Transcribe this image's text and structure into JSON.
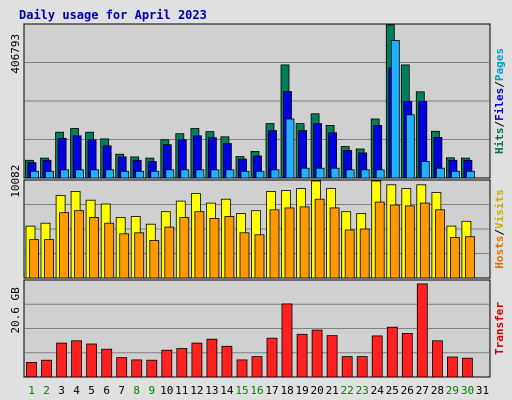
{
  "chart_data": {
    "type": "bar",
    "title": "Daily usage for April 2023",
    "categories": [
      "1",
      "2",
      "3",
      "4",
      "5",
      "6",
      "7",
      "8",
      "9",
      "10",
      "11",
      "12",
      "13",
      "14",
      "15",
      "16",
      "17",
      "18",
      "19",
      "20",
      "21",
      "22",
      "23",
      "24",
      "25",
      "26",
      "27",
      "28",
      "29",
      "30",
      "31"
    ],
    "weekend_days": [
      1,
      2,
      8,
      9,
      15,
      16,
      22,
      23,
      29,
      30
    ],
    "panels": [
      {
        "id": "hits",
        "tick_label": "406793",
        "tick_value": 406793,
        "ymax": 504000,
        "side_labels": [
          {
            "text": "Hits",
            "color": "#007050"
          },
          {
            "text": "Files",
            "color": "#0000d0"
          },
          {
            "text": "Pages",
            "color": "#00a0c8"
          }
        ],
        "series": [
          {
            "name": "Hits",
            "color": "#00805a",
            "values": [
              58000,
              65000,
              150000,
              162000,
              150000,
              128000,
              78000,
              69000,
              65000,
              125000,
              145000,
              162000,
              152000,
              135000,
              70000,
              87000,
              178000,
              370000,
              178000,
              210000,
              172000,
              103000,
              95000,
              193000,
              612000,
              370000,
              282000,
              153000,
              66000,
              65000,
              0
            ]
          },
          {
            "name": "Files",
            "color": "#0000e0",
            "values": [
              50000,
              58000,
              130000,
              138000,
              125000,
              105000,
              69000,
              58000,
              54000,
              109000,
              125000,
              138000,
              132000,
              113000,
              62000,
              72000,
              155000,
              283000,
              155000,
              178000,
              148000,
              90000,
              82000,
              172000,
              360000,
              250000,
              250000,
              133000,
              58000,
              58000,
              0
            ]
          },
          {
            "name": "Pages",
            "color": "#20b0ff",
            "values": [
              22000,
              22000,
              27000,
              27000,
              27000,
              27000,
              22000,
              22000,
              22000,
              27000,
              27000,
              27000,
              27000,
              27000,
              22000,
              22000,
              27000,
              193000,
              32000,
              32000,
              32000,
              27000,
              27000,
              27000,
              450000,
              207000,
              54000,
              32000,
              22000,
              22000,
              0
            ]
          }
        ]
      },
      {
        "id": "visits",
        "tick_label": "10082",
        "tick_value": 10082,
        "ymax": 10200,
        "side_labels": [
          {
            "text": "Hosts",
            "color": "#e07000"
          },
          {
            "text": "Visits",
            "color": "#c8b000"
          }
        ],
        "series": [
          {
            "name": "Visits",
            "color": "#ffff00",
            "values": [
              5400,
              5700,
              8600,
              9000,
              8100,
              7700,
              6300,
              6400,
              5600,
              6900,
              8000,
              8800,
              7800,
              8200,
              6700,
              7000,
              9000,
              9100,
              9300,
              10100,
              9300,
              6900,
              6700,
              10100,
              9700,
              9300,
              9700,
              8900,
              5400,
              5900,
              0
            ]
          },
          {
            "name": "Hosts",
            "color": "#ff9900",
            "values": [
              4000,
              4000,
              6800,
              7000,
              6300,
              5700,
              4600,
              4700,
              3900,
              5300,
              6300,
              6900,
              6200,
              6400,
              4700,
              4500,
              7100,
              7300,
              7400,
              8200,
              7300,
              5000,
              5100,
              7900,
              7600,
              7500,
              7800,
              7100,
              4200,
              4300,
              0
            ]
          }
        ]
      },
      {
        "id": "transfer",
        "tick_label": "20.6 GB",
        "tick_value": 20.6,
        "ymax": 30.0,
        "side_labels": [
          {
            "text": "Transfer",
            "color": "#d00000"
          }
        ],
        "series": [
          {
            "name": "Transfer",
            "color": "#ff2020",
            "values": [
              4.5,
              5.2,
              10.5,
              11.2,
              10.2,
              8.6,
              6.0,
              5.3,
              5.2,
              8.3,
              8.8,
              10.5,
              11.7,
              9.5,
              5.3,
              6.3,
              12.0,
              22.6,
              13.2,
              14.5,
              12.8,
              6.3,
              6.3,
              12.7,
              15.4,
              13.5,
              28.8,
              11.2,
              6.2,
              5.8,
              0
            ]
          }
        ]
      }
    ]
  }
}
